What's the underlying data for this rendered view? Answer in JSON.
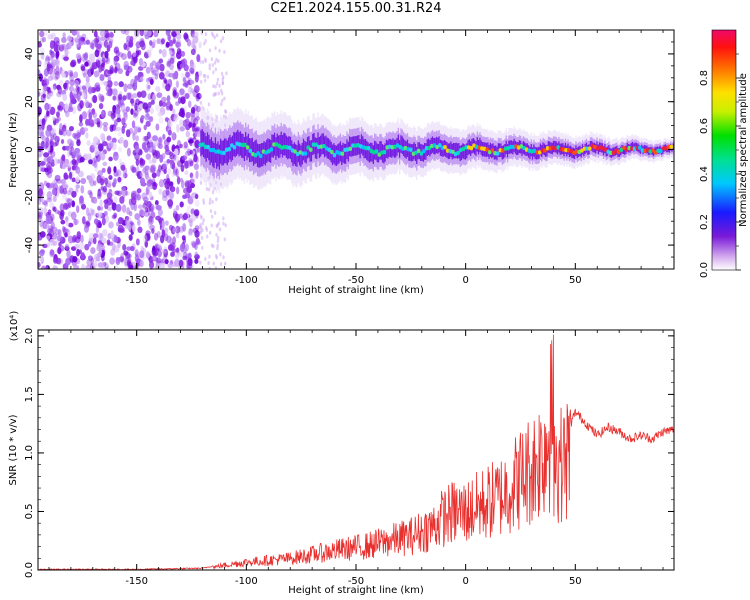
{
  "title": "C2E1.2024.155.00.31.R24",
  "chart_data": [
    {
      "type": "heatmap",
      "xlabel": "Height of straight line (km)",
      "ylabel": "Frequency (Hz)",
      "xlim": [
        -195,
        95
      ],
      "ylim": [
        -50,
        50
      ],
      "xticks": [
        -150,
        -100,
        -50,
        0,
        50
      ],
      "yticks": [
        -40,
        -20,
        0,
        20,
        40
      ],
      "colorbar": {
        "label": "Normalized spectral amplitude",
        "range": [
          0.0,
          1.0
        ],
        "ticks": [
          "0.0",
          "0.2",
          "0.4",
          "0.6",
          "0.8"
        ]
      },
      "description_regions": [
        {
          "x_range": [
            -195,
            -121
          ],
          "pattern": "broadband noise across all frequencies"
        },
        {
          "x_range": [
            -121,
            95
          ],
          "pattern": "narrow band centred near 0 Hz"
        }
      ]
    },
    {
      "type": "line",
      "xlabel": "Height of straight line (km)",
      "ylabel": "SNR (10 * v/v)",
      "y_multiplier": "(x10⁴)",
      "xlim": [
        -195,
        95
      ],
      "ylim": [
        0.0,
        2.05
      ],
      "xticks": [
        -150,
        -100,
        -50,
        0,
        50
      ],
      "yticks": [
        "0.0",
        "0.5",
        "1.0",
        "1.5",
        "2.0"
      ],
      "series": [
        {
          "color": "#e8302e",
          "x": [
            -195,
            -150,
            -120,
            -110,
            -100,
            -80,
            -60,
            -45,
            -35,
            -25,
            -15,
            -10,
            -5,
            0,
            5,
            10,
            15,
            20,
            25,
            30,
            35,
            38,
            40,
            45,
            50,
            55,
            60,
            65,
            70,
            75,
            80,
            85,
            90,
            95
          ],
          "y": [
            0.0,
            0.0,
            0.01,
            0.05,
            0.08,
            0.12,
            0.2,
            0.25,
            0.3,
            0.35,
            0.45,
            0.55,
            0.6,
            0.6,
            0.65,
            0.7,
            0.75,
            0.85,
            0.95,
            1.05,
            1.2,
            1.4,
            1.1,
            1.1,
            1.35,
            1.25,
            1.15,
            1.22,
            1.18,
            1.12,
            1.15,
            1.12,
            1.18,
            1.2
          ]
        }
      ]
    }
  ]
}
